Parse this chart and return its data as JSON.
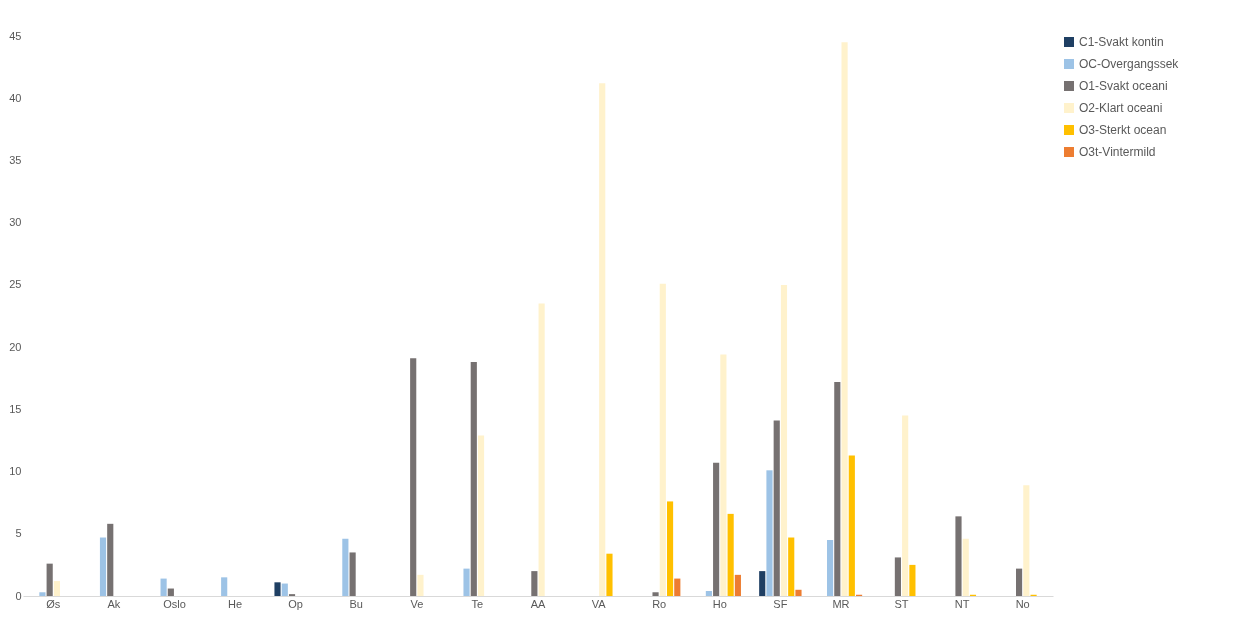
{
  "chart_data": {
    "type": "bar",
    "categories": [
      "Øs",
      "Ak",
      "Oslo",
      "He",
      "Op",
      "Bu",
      "Ve",
      "Te",
      "AA",
      "VA",
      "Ro",
      "Ho",
      "SF",
      "MR",
      "ST",
      "NT",
      "No"
    ],
    "series": [
      {
        "name": "C1-Svakt kontin",
        "color": "#1f3f63",
        "values": [
          null,
          null,
          null,
          null,
          1.1,
          null,
          null,
          null,
          null,
          null,
          null,
          null,
          2.0,
          null,
          null,
          null,
          null
        ]
      },
      {
        "name": "OC-Overgangssek",
        "color": "#9dc3e6",
        "values": [
          0.3,
          4.7,
          1.4,
          1.5,
          1.0,
          4.6,
          null,
          2.2,
          null,
          null,
          null,
          0.4,
          10.1,
          4.5,
          null,
          null,
          null
        ]
      },
      {
        "name": "O1-Svakt oceani",
        "color": "#767171",
        "values": [
          2.6,
          5.8,
          0.6,
          null,
          0.15,
          3.5,
          19.1,
          18.8,
          2.0,
          null,
          0.3,
          10.7,
          14.1,
          17.2,
          3.1,
          6.4,
          2.2
        ]
      },
      {
        "name": "O2-Klart oceani",
        "color": "#fff2cc",
        "values": [
          1.2,
          null,
          null,
          null,
          null,
          null,
          1.7,
          12.9,
          23.5,
          41.2,
          25.1,
          19.4,
          25.0,
          44.5,
          14.5,
          4.6,
          8.9
        ]
      },
      {
        "name": "O3-Sterkt ocean",
        "color": "#ffc000",
        "values": [
          null,
          null,
          null,
          null,
          null,
          null,
          null,
          null,
          null,
          3.4,
          7.6,
          6.6,
          4.7,
          11.3,
          2.5,
          0.1,
          0.1
        ]
      },
      {
        "name": "O3t-Vintermild",
        "color": "#ed7d31",
        "values": [
          null,
          null,
          null,
          null,
          null,
          null,
          null,
          null,
          null,
          null,
          1.4,
          1.7,
          0.5,
          0.1,
          null,
          null,
          null
        ]
      }
    ],
    "ylim": [
      0,
      45
    ],
    "yticks": [
      0,
      5,
      10,
      15,
      20,
      25,
      30,
      35,
      40,
      45
    ],
    "grid": false,
    "legend": "right"
  }
}
